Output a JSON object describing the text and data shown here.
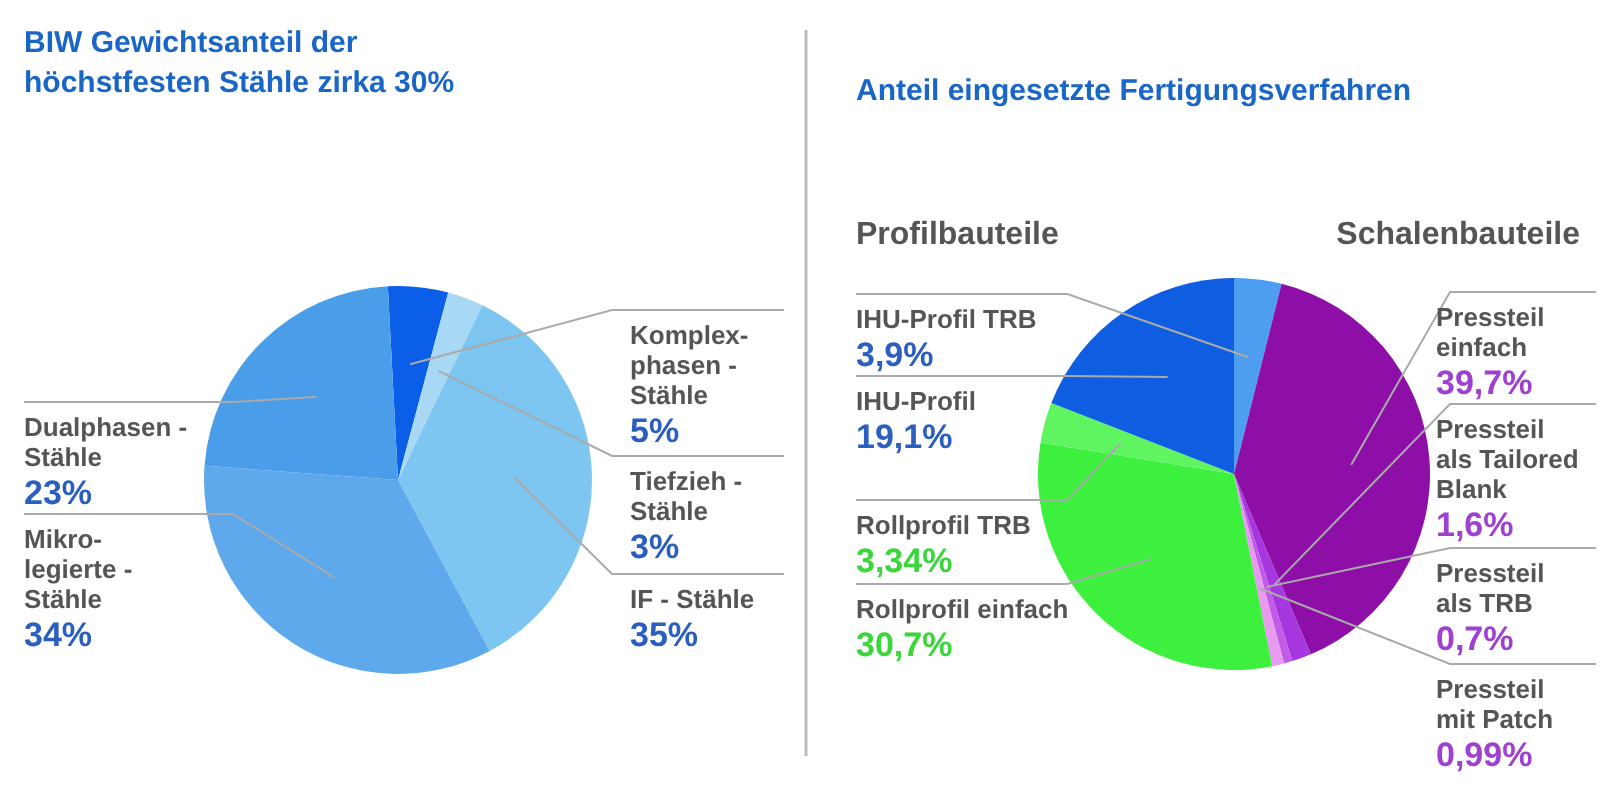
{
  "chart_data": [
    {
      "type": "pie",
      "title": "BIW Gewichtsanteil der höchstfesten Stähle zirka 30%",
      "categories": [
        "Komplex- phasen - Stähle",
        "Tiefzieh - Stähle",
        "IF - Stähle",
        "Mikro- legierte - Stähle",
        "Dualphasen - Stähle"
      ],
      "values": [
        5,
        3,
        35,
        34,
        23
      ],
      "colors": [
        "#0a5ee8",
        "#a9d8f5",
        "#7dc6f2",
        "#5ea8ec",
        "#4a9de8"
      ],
      "value_labels": [
        "5%",
        "3%",
        "35%",
        "34%",
        "23%"
      ]
    },
    {
      "type": "pie",
      "title": "Anteil eingesetzte Fertigungsverfahren",
      "categories": [
        "IHU-Profil TRB",
        "Pressteil einfach",
        "Pressteil als Tailored Blank",
        "Pressteil als TRB",
        "Pressteil mit Patch",
        "Rollprofil einfach",
        "Rollprofil TRB",
        "IHU-Profil"
      ],
      "values": [
        3.9,
        39.7,
        1.6,
        0.7,
        0.99,
        30.7,
        3.34,
        19.1
      ],
      "colors": [
        "#4d9ef0",
        "#8e0fa8",
        "#a636e0",
        "#c25be8",
        "#e89aee",
        "#3ef03e",
        "#5ef560",
        "#0f5de0"
      ],
      "value_labels": [
        "3,9%",
        "39,7%",
        "1,6%",
        "0,7%",
        "0,99%",
        "30,7%",
        "3,34%",
        "19,1%"
      ],
      "annotations": [
        "Profilbauteile",
        "Schalenbauteile"
      ]
    }
  ]
}
